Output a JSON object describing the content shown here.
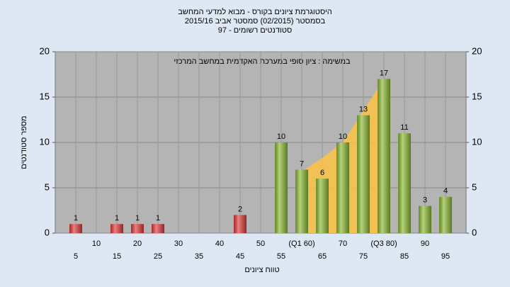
{
  "chart_data": {
    "type": "bar",
    "title": "היסטוגרמת ציונים בקורס - מבוא למדעי המחשב",
    "subtitle": "בסמסטר  (02/2015)  סמסטר אביב 2015/16",
    "subtitle2": "סטודנטים רשומים - 97",
    "annotation": "במשימה : ציון סופי במערכת האקדמית במחשב המרכזי",
    "x_label": "טווח ציונים",
    "y_label": "מספר סטודנטים",
    "x": [
      5,
      10,
      15,
      20,
      25,
      30,
      35,
      40,
      45,
      50,
      55,
      60,
      65,
      70,
      75,
      80,
      85,
      90,
      95
    ],
    "x_tick_labels": [
      "5",
      "10",
      "15",
      "20",
      "25",
      "30",
      "35",
      "40",
      "45",
      "50",
      "55",
      "(Q1 60)",
      "65",
      "70",
      "75",
      "(Q3 80)",
      "85",
      "90",
      "95"
    ],
    "values": [
      1,
      0,
      1,
      1,
      1,
      0,
      0,
      0,
      2,
      0,
      10,
      7,
      6,
      10,
      13,
      17,
      11,
      3,
      4
    ],
    "colors": [
      "#e23a3a",
      "#e23a3a",
      "#e23a3a",
      "#e23a3a",
      "#e23a3a",
      "#e23a3a",
      "#e23a3a",
      "#e23a3a",
      "#e23a3a",
      "#e23a3a",
      "#8cbc34",
      "#8cbc34",
      "#8cbc34",
      "#8cbc34",
      "#8cbc34",
      "#8cbc34",
      "#8cbc34",
      "#8cbc34",
      "#8cbc34"
    ],
    "quartile_area": {
      "color": "#f7c24a",
      "x": [
        60,
        65,
        70,
        75,
        80
      ],
      "values": [
        6.8,
        8.3,
        10,
        13.5,
        17
      ]
    },
    "xlim": [
      0,
      100
    ],
    "ylim": [
      0,
      20
    ],
    "yticks": [
      0,
      5,
      10,
      15,
      20
    ],
    "y2lim": [
      0,
      20
    ],
    "y2ticks": [
      0,
      5,
      10,
      15,
      20
    ],
    "grid": true
  }
}
